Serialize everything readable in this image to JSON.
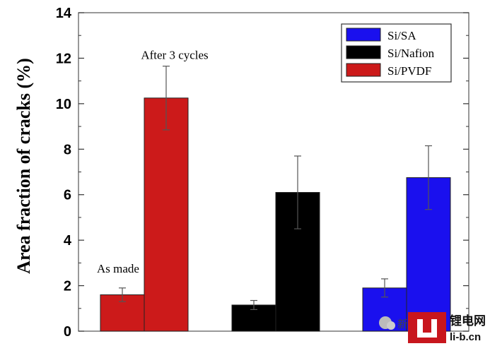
{
  "chart_data": {
    "type": "bar",
    "title": "",
    "xlabel": "",
    "ylabel": "Area fraction of cracks (%)",
    "ylim": [
      0,
      14
    ],
    "yticks": [
      0,
      2,
      4,
      6,
      8,
      10,
      12,
      14
    ],
    "grid": false,
    "legend_position": "top-right",
    "groups": [
      {
        "bars": [
          {
            "series": "Si/PVDF",
            "value": 1.6,
            "error": 0.3
          },
          {
            "series": "Si/PVDF",
            "value": 10.25,
            "error": 1.4
          }
        ]
      },
      {
        "bars": [
          {
            "series": "Si/Nafion",
            "value": 1.15,
            "error": 0.2
          },
          {
            "series": "Si/Nafion",
            "value": 6.1,
            "error": 1.6
          }
        ]
      },
      {
        "bars": [
          {
            "series": "Si/SA",
            "value": 1.9,
            "error": 0.4
          },
          {
            "series": "Si/SA",
            "value": 6.75,
            "error": 1.4
          }
        ]
      }
    ],
    "series": [
      {
        "name": "Si/SA",
        "color": "#1a10ee"
      },
      {
        "name": "Si/Nafion",
        "color": "#000000"
      },
      {
        "name": "Si/PVDF",
        "color": "#cc1a1a"
      }
    ],
    "annotations": [
      {
        "text": "As made",
        "anchor_group": 0,
        "anchor_bar": 0
      },
      {
        "text": "After 3 cycles",
        "anchor_group": 0,
        "anchor_bar": 1
      }
    ]
  },
  "watermark": {
    "wechat_text": "新",
    "brand_cn": "锂电网",
    "brand_url": "li-b.cn"
  }
}
